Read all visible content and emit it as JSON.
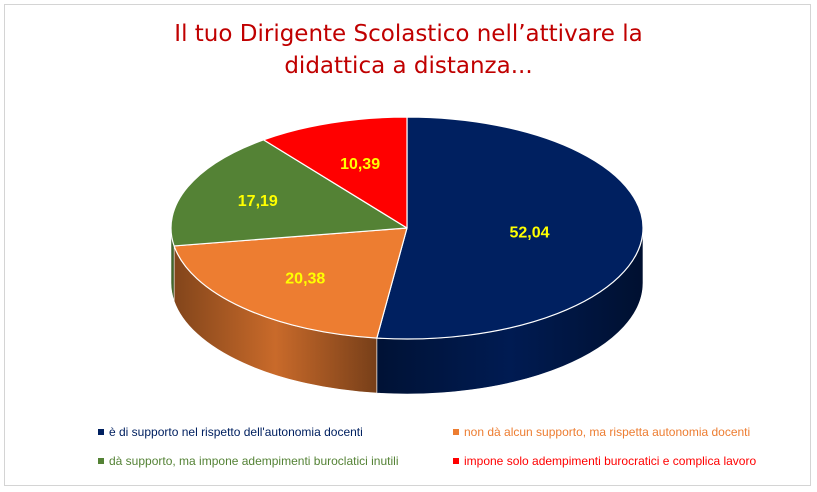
{
  "title_line1": "Il tuo Dirigente Scolastico nell’attivare la",
  "title_line2": "didattica a distanza...",
  "chart_data": {
    "type": "pie",
    "title": "Il tuo Dirigente Scolastico nell’attivare la didattica a distanza...",
    "style": "3d",
    "legend_position": "bottom",
    "series": [
      {
        "label": "è di supporto nel rispetto dell'autonomia docenti",
        "value": 52.04,
        "value_text": "52,04",
        "color": "#002060"
      },
      {
        "label": "non dà alcun supporto, ma rispetta autonomia docenti",
        "value": 20.38,
        "value_text": "20,38",
        "color": "#ed7d31"
      },
      {
        "label": "dà supporto, ma impone adempimenti buroclatici inutili",
        "value": 17.19,
        "value_text": "17,19",
        "color": "#548235"
      },
      {
        "label": "impone solo adempimenti burocratici e complica lavoro",
        "value": 10.39,
        "value_text": "10,39",
        "color": "#ff0000"
      }
    ],
    "data_label_color": "#ffff00"
  }
}
